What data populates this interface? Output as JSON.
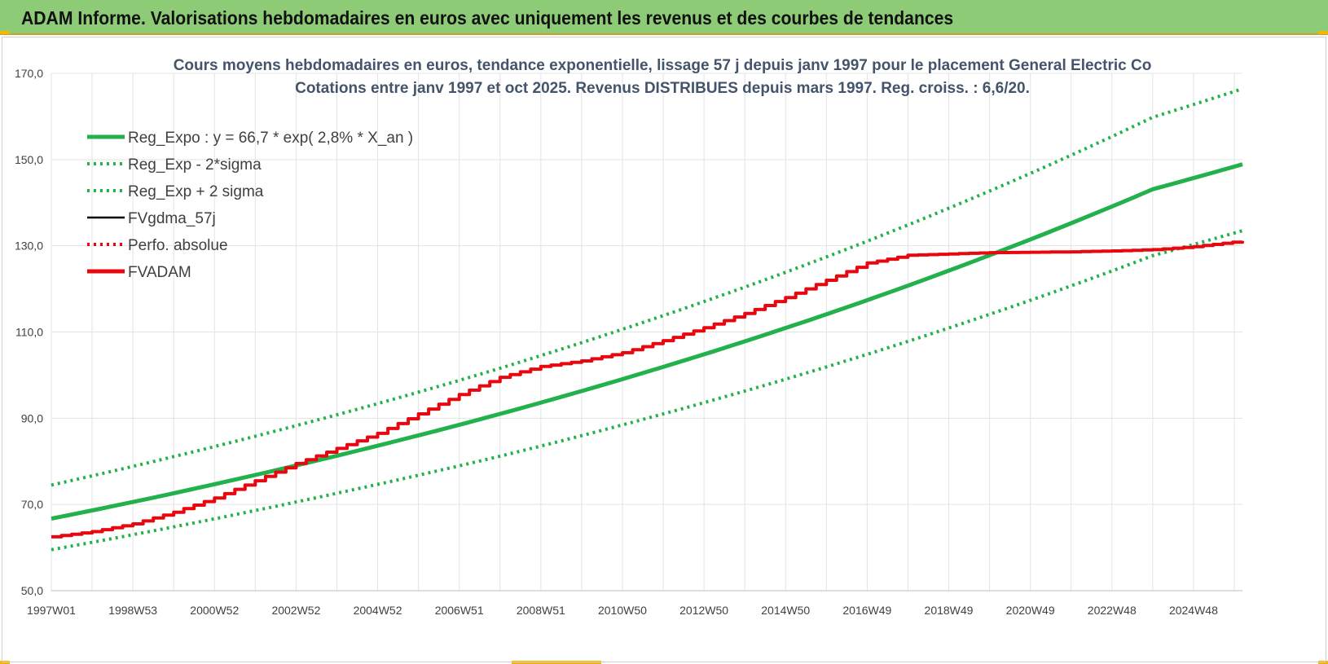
{
  "header": {
    "title": "ADAM Informe. Valorisations hebdomadaires en euros avec uniquement les revenus et des courbes de tendances"
  },
  "colors": {
    "banner": "#8dcb76",
    "trend_green": "#22b14c",
    "adam_red": "#e8070e",
    "text_title": "#44546a",
    "grid": "#e3e3e3"
  },
  "chart_data": {
    "type": "line",
    "title": "Cours moyens hebdomadaires en euros, tendance exponentielle, lissage 57 j depuis janv 1997 pour le placement General Electric Co",
    "subtitle": "Cotations entre janv 1997 et oct 2025. Revenus DISTRIBUES depuis mars 1997. Reg. croiss. : 6,6/20.",
    "xlabel": "",
    "ylabel": "",
    "ylim": [
      50,
      170
    ],
    "y_ticks": [
      "50,0",
      "70,0",
      "90,0",
      "110,0",
      "130,0",
      "150,0",
      "170,0"
    ],
    "x_ticks": [
      "1997W01",
      "1998W53",
      "2000W52",
      "2002W52",
      "2004W52",
      "2006W51",
      "2008W51",
      "2010W50",
      "2012W50",
      "2014W50",
      "2016W49",
      "2018W49",
      "2020W49",
      "2022W48",
      "2024W48"
    ],
    "x_range_years": [
      1997.0,
      2026.2
    ],
    "grid": true,
    "legend_position": "top-left",
    "series": [
      {
        "name": "Reg_Expo : y = 66,7 * exp( 2,8% *  X_an )",
        "style": "solid-thick",
        "color": "#22b14c",
        "x": [
          1997.0,
          2000.0,
          2004.0,
          2008.0,
          2012.0,
          2016.0,
          2020.0,
          2024.0,
          2026.2
        ],
        "y": [
          66.7,
          72.6,
          81.3,
          91.0,
          101.9,
          114.1,
          127.8,
          143.1,
          148.9
        ]
      },
      {
        "name": "Reg_Exp - 2*sigma",
        "style": "dotted",
        "color": "#22b14c",
        "x": [
          1997.0,
          2000.0,
          2004.0,
          2008.0,
          2012.0,
          2016.0,
          2020.0,
          2024.0,
          2026.2
        ],
        "y": [
          59.5,
          64.8,
          72.6,
          81.2,
          91.0,
          101.9,
          114.1,
          127.7,
          133.5
        ]
      },
      {
        "name": "Reg_Exp + 2 sigma",
        "style": "dotted",
        "color": "#22b14c",
        "x": [
          1997.0,
          2000.0,
          2004.0,
          2008.0,
          2012.0,
          2016.0,
          2020.0,
          2024.0,
          2026.2
        ],
        "y": [
          74.5,
          81.1,
          90.8,
          101.6,
          113.8,
          127.4,
          142.7,
          159.8,
          166.4
        ]
      },
      {
        "name": "FVgdma_57j",
        "style": "solid",
        "color": "#000000",
        "x": [],
        "y": []
      },
      {
        "name": "Perfo. absolue",
        "style": "dotted",
        "color": "#e8070e",
        "x": [],
        "y": []
      },
      {
        "name": "FVADAM",
        "style": "solid-thick",
        "color": "#e8070e",
        "x": [
          1997.0,
          1998.0,
          1999.0,
          2000.0,
          2001.0,
          2002.0,
          2003.0,
          2004.0,
          2005.0,
          2006.0,
          2007.0,
          2008.0,
          2009.0,
          2010.0,
          2011.0,
          2012.0,
          2013.0,
          2014.0,
          2015.0,
          2016.0,
          2017.0,
          2018.0,
          2019.0,
          2020.0,
          2021.0,
          2022.0,
          2023.0,
          2024.0,
          2025.0,
          2026.2
        ],
        "y": [
          62.5,
          63.7,
          65.5,
          68.2,
          71.5,
          75.5,
          79.5,
          83.0,
          86.5,
          91.0,
          95.5,
          99.5,
          102.0,
          103.3,
          105.2,
          108.0,
          111.0,
          114.3,
          118.0,
          122.0,
          126.0,
          127.8,
          128.1,
          128.4,
          128.5,
          128.6,
          128.8,
          129.1,
          129.8,
          131.1
        ]
      }
    ]
  }
}
